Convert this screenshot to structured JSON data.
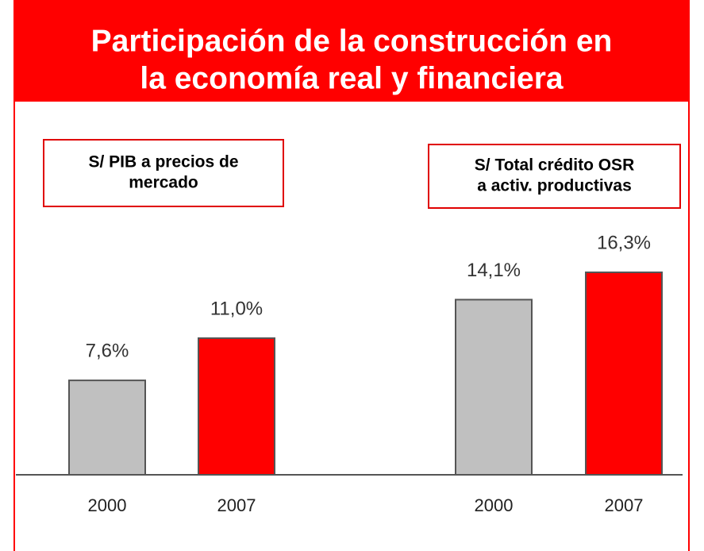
{
  "title": [
    "Participación de la construcción en",
    "la economía real y financiera"
  ],
  "chart_data": [
    {
      "type": "bar",
      "title": [
        "S/ PIB a precios de",
        "mercado"
      ],
      "categories": [
        "2000",
        "2007"
      ],
      "values": [
        7.6,
        11.0
      ],
      "value_labels": [
        "7,6%",
        "11,0%"
      ],
      "colors": [
        "#c0c0c0",
        "#ff0000"
      ]
    },
    {
      "type": "bar",
      "title": [
        "S/ Total crédito OSR",
        "a activ. productivas"
      ],
      "categories": [
        "2000",
        "2007"
      ],
      "values": [
        14.1,
        16.3
      ],
      "value_labels": [
        "14,1%",
        "16,3%"
      ],
      "colors": [
        "#c0c0c0",
        "#ff0000"
      ]
    }
  ]
}
